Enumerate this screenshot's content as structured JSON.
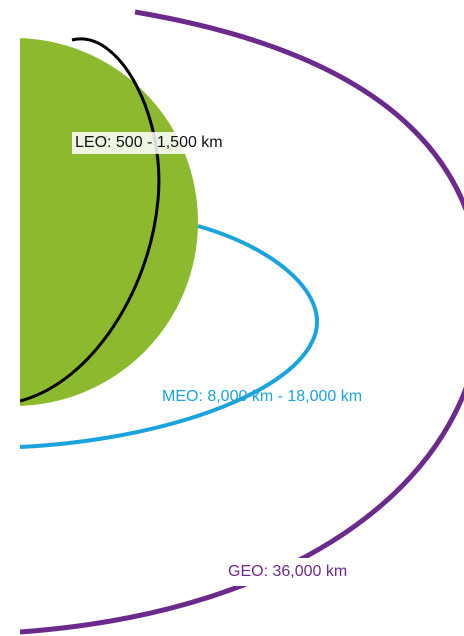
{
  "orbits": [
    {
      "label": "LEO: 500 - 1,500 km"
    },
    {
      "label": "MEO: 8,000 km - 18,000 km"
    },
    {
      "label": "GEO: 36,000 km"
    }
  ]
}
